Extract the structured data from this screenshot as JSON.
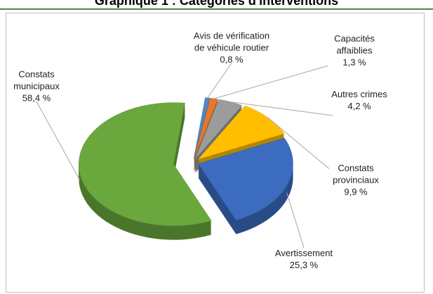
{
  "chart_data": {
    "type": "pie",
    "title": "Graphique 1 : Catégories d'interventions",
    "categories": [
      "Avis de vérification de véhicule routier",
      "Capacités affaiblies",
      "Autres crimes",
      "Constats provinciaux",
      "Avertissement",
      "Constats municipaux"
    ],
    "values": [
      0.8,
      1.3,
      4.2,
      9.9,
      25.3,
      58.4
    ],
    "value_labels": [
      "0,8 %",
      "1,3 %",
      "4,2 %",
      "9,9 %",
      "25,3 %",
      "58,4 %"
    ],
    "colors": [
      "#4f87c2",
      "#e8772e",
      "#9c9c9c",
      "#ffbf00",
      "#3c6cc0",
      "#6aa83d"
    ]
  }
}
